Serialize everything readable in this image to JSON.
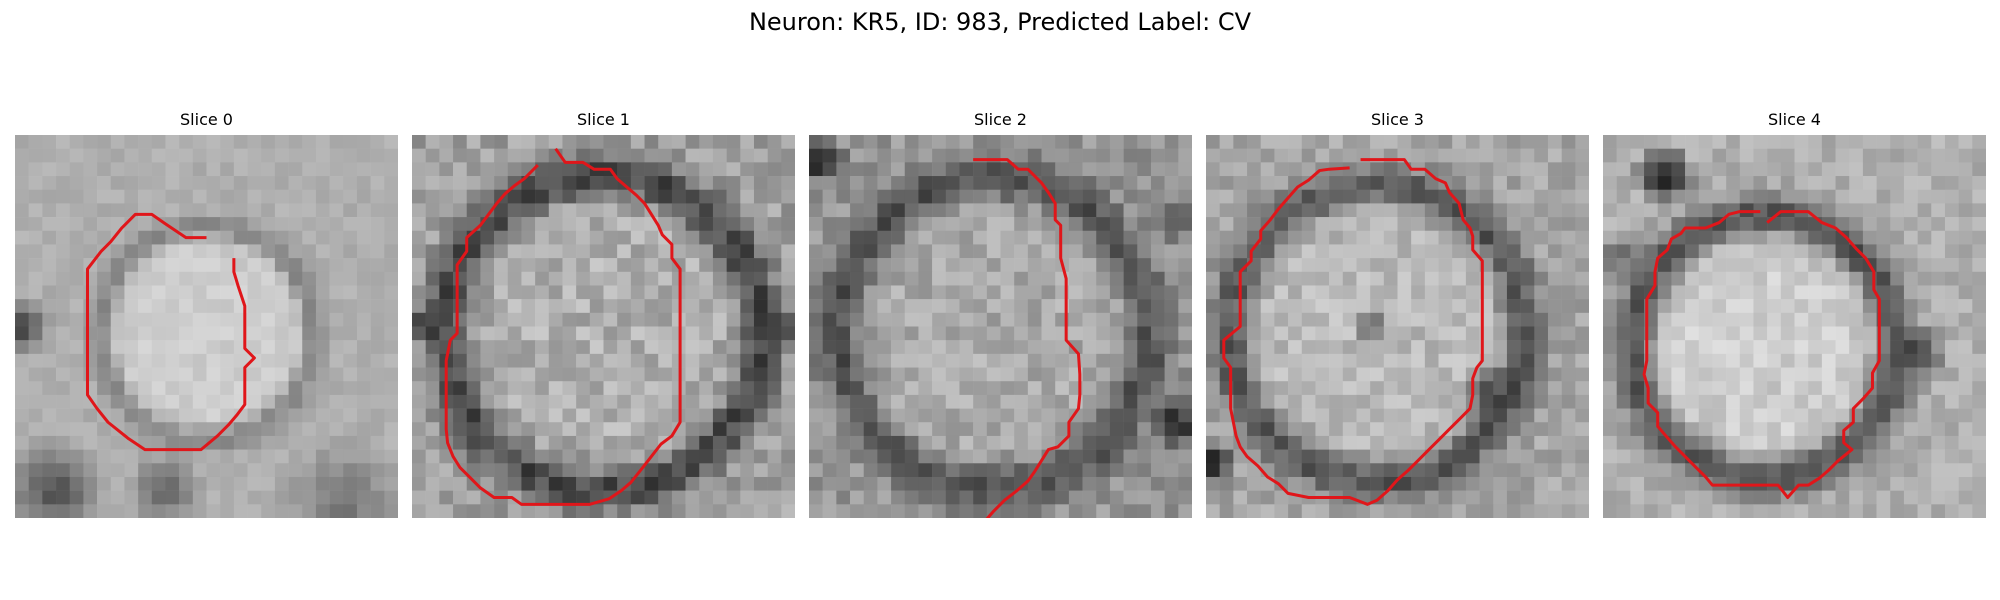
{
  "figure": {
    "title": "Neuron: KR5, ID: 983, Predicted Label: CV",
    "contour_color": "#e0161a"
  },
  "panels": [
    {
      "title": "Slice 0",
      "contour": [
        [
          14,
          7.5
        ],
        [
          12.5,
          7.5
        ],
        [
          11,
          6.5
        ],
        [
          10,
          5.8
        ],
        [
          8.8,
          5.8
        ],
        [
          7.8,
          6.8
        ],
        [
          7,
          7.8
        ],
        [
          6.3,
          8.5
        ],
        [
          5.3,
          9.8
        ],
        [
          5.3,
          11
        ],
        [
          5.3,
          13
        ],
        [
          5.3,
          15
        ],
        [
          5.3,
          17.5
        ],
        [
          5.3,
          19
        ],
        [
          6,
          20
        ],
        [
          6.8,
          21
        ],
        [
          8.3,
          22.2
        ],
        [
          9.5,
          23
        ],
        [
          13.6,
          23
        ],
        [
          14.8,
          22
        ],
        [
          15.6,
          21.2
        ],
        [
          16.2,
          20.5
        ],
        [
          16.8,
          19.7
        ],
        [
          16.8,
          18.5
        ],
        [
          16.8,
          17
        ],
        [
          17.5,
          16.3
        ],
        [
          16.8,
          15.6
        ],
        [
          16.8,
          14
        ],
        [
          16.8,
          12.5
        ],
        [
          16.3,
          11
        ],
        [
          16,
          10
        ],
        [
          16,
          9
        ]
      ]
    },
    {
      "title": "Slice 1",
      "contour": [
        [
          10.5,
          1
        ],
        [
          11.2,
          2
        ],
        [
          12.5,
          2
        ],
        [
          13.3,
          2.5
        ],
        [
          14.5,
          2.5
        ],
        [
          15,
          3.2
        ],
        [
          15.7,
          3.8
        ],
        [
          16.4,
          4.4
        ],
        [
          17,
          5
        ],
        [
          17.5,
          5.8
        ],
        [
          18,
          6.6
        ],
        [
          18.3,
          7.3
        ],
        [
          19,
          8
        ],
        [
          19,
          9
        ],
        [
          19.6,
          9.8
        ],
        [
          19.6,
          11
        ],
        [
          19.6,
          13
        ],
        [
          19.6,
          15
        ],
        [
          19.6,
          17
        ],
        [
          19.6,
          19
        ],
        [
          19.6,
          21
        ],
        [
          19,
          22
        ],
        [
          18.2,
          22.6
        ],
        [
          17.5,
          23.5
        ],
        [
          16.8,
          24.4
        ],
        [
          16,
          25.4
        ],
        [
          15.3,
          26
        ],
        [
          14.4,
          26.6
        ],
        [
          13,
          27
        ],
        [
          12.5,
          27
        ],
        [
          10,
          27
        ],
        [
          8,
          27
        ],
        [
          7.3,
          26.5
        ],
        [
          6,
          26.5
        ],
        [
          5,
          25.8
        ],
        [
          4.2,
          25
        ],
        [
          3.5,
          24.3
        ],
        [
          3,
          23.5
        ],
        [
          2.6,
          22.5
        ],
        [
          2.5,
          21.5
        ],
        [
          2.5,
          20
        ],
        [
          2.5,
          18.5
        ],
        [
          2.5,
          16.5
        ],
        [
          2.8,
          15
        ],
        [
          3.3,
          14.5
        ],
        [
          3.3,
          12.8
        ],
        [
          3.3,
          11
        ],
        [
          3.3,
          9.5
        ],
        [
          4,
          8.5
        ],
        [
          4,
          7.5
        ],
        [
          5,
          6.6
        ],
        [
          5.6,
          5.8
        ],
        [
          6.2,
          5
        ],
        [
          6.8,
          4.3
        ],
        [
          7.5,
          3.7
        ],
        [
          8.2,
          3.2
        ],
        [
          9.2,
          2.2
        ]
      ]
    },
    {
      "title": "Slice 2",
      "contour": [
        [
          12,
          1.8
        ],
        [
          14.5,
          1.8
        ],
        [
          15.3,
          2.5
        ],
        [
          16,
          2.5
        ],
        [
          16.7,
          3.2
        ],
        [
          17,
          3.5
        ],
        [
          17.5,
          4.2
        ],
        [
          18,
          5
        ],
        [
          18,
          6.2
        ],
        [
          18.4,
          6.6
        ],
        [
          18.4,
          9
        ],
        [
          18.8,
          10.5
        ],
        [
          18.8,
          11.6
        ],
        [
          18.8,
          13.6
        ],
        [
          18.8,
          15
        ],
        [
          19.7,
          16
        ],
        [
          19.8,
          17.5
        ],
        [
          19.8,
          19
        ],
        [
          19.7,
          20
        ],
        [
          19,
          21
        ],
        [
          19,
          22
        ],
        [
          18.2,
          22.8
        ],
        [
          17.5,
          23
        ],
        [
          17,
          23.8
        ],
        [
          16.5,
          24.6
        ],
        [
          16,
          25.3
        ],
        [
          15.2,
          26
        ],
        [
          14.3,
          26.7
        ],
        [
          13.5,
          27.5
        ],
        [
          12.8,
          28.3
        ],
        [
          12,
          29
        ]
      ]
    },
    {
      "title": "Slice 3",
      "contour": [
        [
          11.3,
          1.8
        ],
        [
          14.5,
          1.8
        ],
        [
          15,
          2.5
        ],
        [
          16,
          2.5
        ],
        [
          16.8,
          3.2
        ],
        [
          17.5,
          3.5
        ],
        [
          17.8,
          4.2
        ],
        [
          18.5,
          5
        ],
        [
          18.8,
          6.2
        ],
        [
          19.3,
          6.8
        ],
        [
          19.5,
          7.4
        ],
        [
          19.5,
          8.4
        ],
        [
          20.2,
          9.2
        ],
        [
          20.2,
          10.5
        ],
        [
          20.2,
          12
        ],
        [
          20.2,
          13.5
        ],
        [
          20.2,
          15
        ],
        [
          20.2,
          16.5
        ],
        [
          19.8,
          17
        ],
        [
          19.5,
          17.8
        ],
        [
          19.5,
          19
        ],
        [
          19.3,
          20
        ],
        [
          18.5,
          20.8
        ],
        [
          17.8,
          21.5
        ],
        [
          17,
          22.3
        ],
        [
          16.3,
          23
        ],
        [
          15.5,
          23.8
        ],
        [
          14.8,
          24.5
        ],
        [
          14,
          25.2
        ],
        [
          13.3,
          26
        ],
        [
          12.5,
          26.7
        ],
        [
          11.8,
          27
        ],
        [
          10.5,
          26.5
        ],
        [
          7.5,
          26.5
        ],
        [
          6,
          26.2
        ],
        [
          5.3,
          25.5
        ],
        [
          4.5,
          25
        ],
        [
          3.8,
          24.2
        ],
        [
          3,
          23.5
        ],
        [
          2.5,
          22.8
        ],
        [
          2.2,
          22
        ],
        [
          2,
          21
        ],
        [
          1.8,
          20
        ],
        [
          1.8,
          18.5
        ],
        [
          1.8,
          17
        ],
        [
          1.3,
          16.3
        ],
        [
          1.3,
          15
        ],
        [
          2.5,
          14
        ],
        [
          2.5,
          12.5
        ],
        [
          2.5,
          11
        ],
        [
          2.5,
          10
        ],
        [
          3.3,
          9.2
        ],
        [
          3.3,
          8.5
        ],
        [
          4,
          7.6
        ],
        [
          4,
          7
        ],
        [
          4.7,
          6.2
        ],
        [
          5.3,
          5.4
        ],
        [
          6,
          4.6
        ],
        [
          6.7,
          3.8
        ],
        [
          7.5,
          3.3
        ],
        [
          8.3,
          2.6
        ],
        [
          9,
          2.5
        ],
        [
          10.5,
          2.4
        ]
      ]
    },
    {
      "title": "Slice 4",
      "contour": [
        [
          12,
          6.4
        ],
        [
          13,
          5.6
        ],
        [
          15,
          5.6
        ],
        [
          16,
          6.4
        ],
        [
          17,
          6.8
        ],
        [
          17.8,
          7.5
        ],
        [
          18.5,
          8.3
        ],
        [
          19.2,
          9
        ],
        [
          19.8,
          10
        ],
        [
          19.8,
          11.3
        ],
        [
          20.2,
          12
        ],
        [
          20.2,
          13.5
        ],
        [
          20.2,
          15
        ],
        [
          20.2,
          16.5
        ],
        [
          19.7,
          17.4
        ],
        [
          19.7,
          18.5
        ],
        [
          19,
          19.3
        ],
        [
          18.3,
          20
        ],
        [
          18.3,
          21
        ],
        [
          17.6,
          21.6
        ],
        [
          17.6,
          22.5
        ],
        [
          18.2,
          23
        ],
        [
          17.2,
          23.8
        ],
        [
          16.5,
          24.5
        ],
        [
          15.8,
          25.1
        ],
        [
          15,
          25.6
        ],
        [
          14.3,
          25.6
        ],
        [
          13.5,
          26.5
        ],
        [
          12.8,
          25.6
        ],
        [
          11.5,
          25.6
        ],
        [
          9.5,
          25.6
        ],
        [
          8,
          25.6
        ],
        [
          7.5,
          25
        ],
        [
          6.8,
          24.3
        ],
        [
          6,
          23.5
        ],
        [
          5.3,
          22.8
        ],
        [
          4.6,
          22
        ],
        [
          4,
          21.3
        ],
        [
          4,
          20.3
        ],
        [
          3.3,
          19.6
        ],
        [
          3.3,
          18.5
        ],
        [
          3,
          17.5
        ],
        [
          3.2,
          16.5
        ],
        [
          3.2,
          15
        ],
        [
          3.2,
          13.5
        ],
        [
          3.2,
          12
        ],
        [
          3.8,
          11
        ],
        [
          3.8,
          10
        ],
        [
          4,
          9
        ],
        [
          4.7,
          8.4
        ],
        [
          5,
          7.6
        ],
        [
          5.7,
          7.2
        ],
        [
          6,
          6.8
        ],
        [
          7.5,
          6.8
        ],
        [
          8.5,
          6.4
        ],
        [
          9.2,
          5.8
        ],
        [
          10,
          5.6
        ],
        [
          11.5,
          5.6
        ]
      ]
    }
  ]
}
